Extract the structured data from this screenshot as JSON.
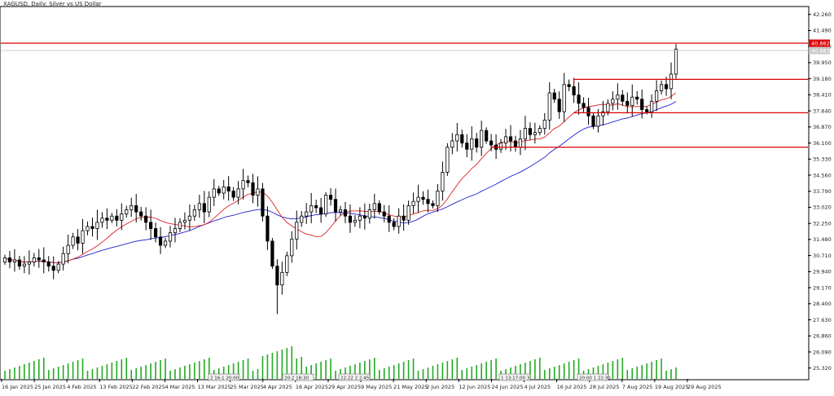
{
  "chart_data": {
    "type": "candlestick",
    "title": "XAGUSD, Daily:  Silver vs US Dollar",
    "ylim": [
      24.8,
      42.6
    ],
    "y_ticks": [
      "42.260",
      "41.490",
      "40.720",
      "39.950",
      "39.180",
      "38.410",
      "37.640",
      "36.870",
      "36.100",
      "35.330",
      "34.560",
      "33.790",
      "33.020",
      "32.250",
      "31.480",
      "30.710",
      "29.940",
      "29.170",
      "28.400",
      "27.630",
      "26.860",
      "26.090",
      "25.320"
    ],
    "x_ticks": [
      "16 Jan 2025",
      "25 Jan 2025",
      "4 Feb 2025",
      "13 Feb 2025",
      "22 Feb 2025",
      "4 Mar 2025",
      "13 Mar 2025",
      "25 Mar 2025",
      "4 Apr 2025",
      "16 Apr 2025",
      "29 Apr 2025",
      "9 May 2025",
      "21 May 2025",
      "2 Jun 2025",
      "12 Jun 2025",
      "24 Jun 2025",
      "4 Jul 2025",
      "16 Jul 2025",
      "28 Jul 2025",
      "7 Aug 2025",
      "19 Aug 2025",
      "29 Aug 2025"
    ],
    "current_price_label": "40.882",
    "bid_label": "40.883",
    "time_labels": [
      "2 16:1 20:00",
      "20:2 18:30",
      "22:22 2 2:45",
      "1 13:17:00 3",
      "20:00 1 22:30"
    ],
    "closes": [
      30.6,
      30.4,
      30.5,
      30.2,
      30.3,
      30.4,
      30.6,
      30.5,
      30.4,
      30.2,
      30.0,
      30.3,
      30.8,
      31.2,
      31.6,
      31.3,
      31.9,
      32.1,
      32.0,
      32.3,
      32.5,
      32.4,
      32.6,
      32.4,
      32.7,
      32.9,
      33.1,
      32.8,
      32.6,
      32.3,
      32.0,
      31.6,
      31.2,
      31.4,
      31.8,
      32.0,
      32.3,
      32.4,
      32.6,
      32.9,
      33.2,
      32.8,
      33.5,
      33.9,
      33.7,
      34.0,
      33.8,
      33.5,
      33.9,
      34.3,
      34.2,
      33.6,
      33.9,
      32.6,
      31.4,
      30.2,
      29.3,
      29.9,
      30.7,
      31.5,
      32.3,
      32.6,
      32.8,
      33.1,
      33.0,
      32.7,
      33.6,
      33.4,
      32.8,
      32.9,
      32.6,
      32.3,
      32.4,
      32.6,
      32.5,
      32.9,
      33.2,
      32.8,
      32.6,
      32.3,
      32.1,
      32.6,
      32.4,
      33.1,
      33.3,
      33.5,
      33.4,
      33.2,
      33.1,
      33.8,
      34.7,
      35.9,
      36.2,
      36.5,
      36.1,
      35.8,
      36.3,
      35.9,
      36.7,
      36.2,
      36.0,
      35.8,
      36.1,
      36.4,
      36.2,
      35.9,
      36.3,
      36.8,
      36.5,
      36.6,
      36.8,
      37.2,
      38.5,
      38.2,
      37.6,
      38.9,
      38.8,
      38.4,
      38.0,
      37.8,
      37.4,
      36.9,
      37.4,
      37.6,
      38.0,
      38.2,
      38.4,
      38.1,
      37.9,
      38.3,
      38.2,
      37.7,
      37.6,
      38.1,
      38.6,
      38.9,
      38.7,
      39.4,
      40.6
    ],
    "upper_levels": [
      40.88,
      39.15
    ],
    "resistance_box": {
      "from_index": 117,
      "top": 39.15,
      "bottom": 37.55
    },
    "support_level": 35.9
  }
}
